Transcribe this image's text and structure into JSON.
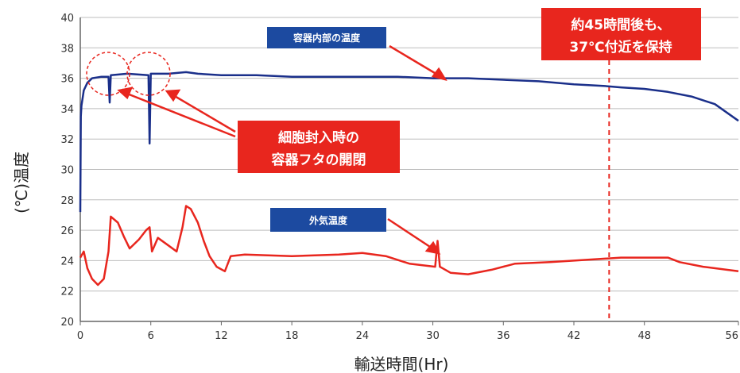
{
  "chart_data": {
    "type": "line",
    "xlabel": "輸送時間(Hr)",
    "ylabel": "(℃)温度",
    "xlim": [
      0,
      56
    ],
    "ylim": [
      20,
      40
    ],
    "x_ticks": [
      0,
      6,
      12,
      18,
      24,
      30,
      36,
      42,
      48,
      56
    ],
    "y_ticks": [
      20,
      22,
      24,
      26,
      28,
      30,
      32,
      34,
      36,
      38,
      40
    ],
    "grid": "horizontal",
    "series": [
      {
        "name": "容器内部の温度",
        "color": "#1a2f8a",
        "points": [
          [
            0,
            27.2
          ],
          [
            0.05,
            33.5
          ],
          [
            0.1,
            34.2
          ],
          [
            0.3,
            35.2
          ],
          [
            0.6,
            35.7
          ],
          [
            1.0,
            36.0
          ],
          [
            1.8,
            36.1
          ],
          [
            2.4,
            36.1
          ],
          [
            2.5,
            34.4
          ],
          [
            2.6,
            36.2
          ],
          [
            4.0,
            36.3
          ],
          [
            5.8,
            36.2
          ],
          [
            5.9,
            31.7
          ],
          [
            6.0,
            36.3
          ],
          [
            7.5,
            36.3
          ],
          [
            9.0,
            36.4
          ],
          [
            10.0,
            36.3
          ],
          [
            12.0,
            36.2
          ],
          [
            15.0,
            36.2
          ],
          [
            18.0,
            36.1
          ],
          [
            21.0,
            36.1
          ],
          [
            24.0,
            36.1
          ],
          [
            27.0,
            36.1
          ],
          [
            30.0,
            36.0
          ],
          [
            33.0,
            36.0
          ],
          [
            36.0,
            35.9
          ],
          [
            39.0,
            35.8
          ],
          [
            42.0,
            35.6
          ],
          [
            44.5,
            35.5
          ],
          [
            46.0,
            35.4
          ],
          [
            48.0,
            35.3
          ],
          [
            50.0,
            35.1
          ],
          [
            52.0,
            34.8
          ],
          [
            54.0,
            34.3
          ],
          [
            56.0,
            33.2
          ]
        ]
      },
      {
        "name": "外気温度",
        "color": "#e8261e",
        "points": [
          [
            0,
            24.2
          ],
          [
            0.3,
            24.6
          ],
          [
            0.6,
            23.5
          ],
          [
            1.0,
            22.8
          ],
          [
            1.5,
            22.4
          ],
          [
            2.0,
            22.8
          ],
          [
            2.4,
            24.6
          ],
          [
            2.6,
            26.9
          ],
          [
            3.2,
            26.5
          ],
          [
            3.7,
            25.6
          ],
          [
            4.2,
            24.8
          ],
          [
            5.0,
            25.4
          ],
          [
            5.6,
            26.0
          ],
          [
            5.9,
            26.2
          ],
          [
            6.1,
            24.6
          ],
          [
            6.6,
            25.5
          ],
          [
            7.5,
            25.0
          ],
          [
            8.2,
            24.6
          ],
          [
            8.7,
            26.2
          ],
          [
            9.0,
            27.6
          ],
          [
            9.4,
            27.4
          ],
          [
            10.0,
            26.5
          ],
          [
            10.5,
            25.3
          ],
          [
            11.0,
            24.3
          ],
          [
            11.6,
            23.6
          ],
          [
            12.3,
            23.3
          ],
          [
            12.8,
            24.3
          ],
          [
            14.0,
            24.4
          ],
          [
            18.0,
            24.3
          ],
          [
            22.0,
            24.4
          ],
          [
            24.0,
            24.5
          ],
          [
            26.0,
            24.3
          ],
          [
            28.0,
            23.8
          ],
          [
            30.2,
            23.6
          ],
          [
            30.4,
            25.3
          ],
          [
            30.6,
            23.6
          ],
          [
            31.5,
            23.2
          ],
          [
            33.0,
            23.1
          ],
          [
            35.0,
            23.4
          ],
          [
            37.0,
            23.8
          ],
          [
            40.0,
            23.9
          ],
          [
            42.0,
            24.0
          ],
          [
            44.0,
            24.1
          ],
          [
            46.0,
            24.2
          ],
          [
            48.0,
            24.2
          ],
          [
            50.0,
            24.2
          ],
          [
            51.0,
            23.9
          ],
          [
            53.0,
            23.6
          ],
          [
            55.0,
            23.4
          ],
          [
            56.0,
            23.3
          ]
        ]
      }
    ],
    "reference_line": {
      "x": 45,
      "color": "#e8261e",
      "style": "dashed"
    },
    "annotations": {
      "inner_label": "容器内部の温度",
      "outer_label": "外気温度",
      "opening_line1": "細胞封入時の",
      "opening_line2": "容器フタの開閉",
      "hold_line1": "約45時間後も、",
      "hold_line2": "37℃付近を保持",
      "blue_box_color": "#1c4aa0",
      "red_box_color": "#e8261e"
    }
  }
}
